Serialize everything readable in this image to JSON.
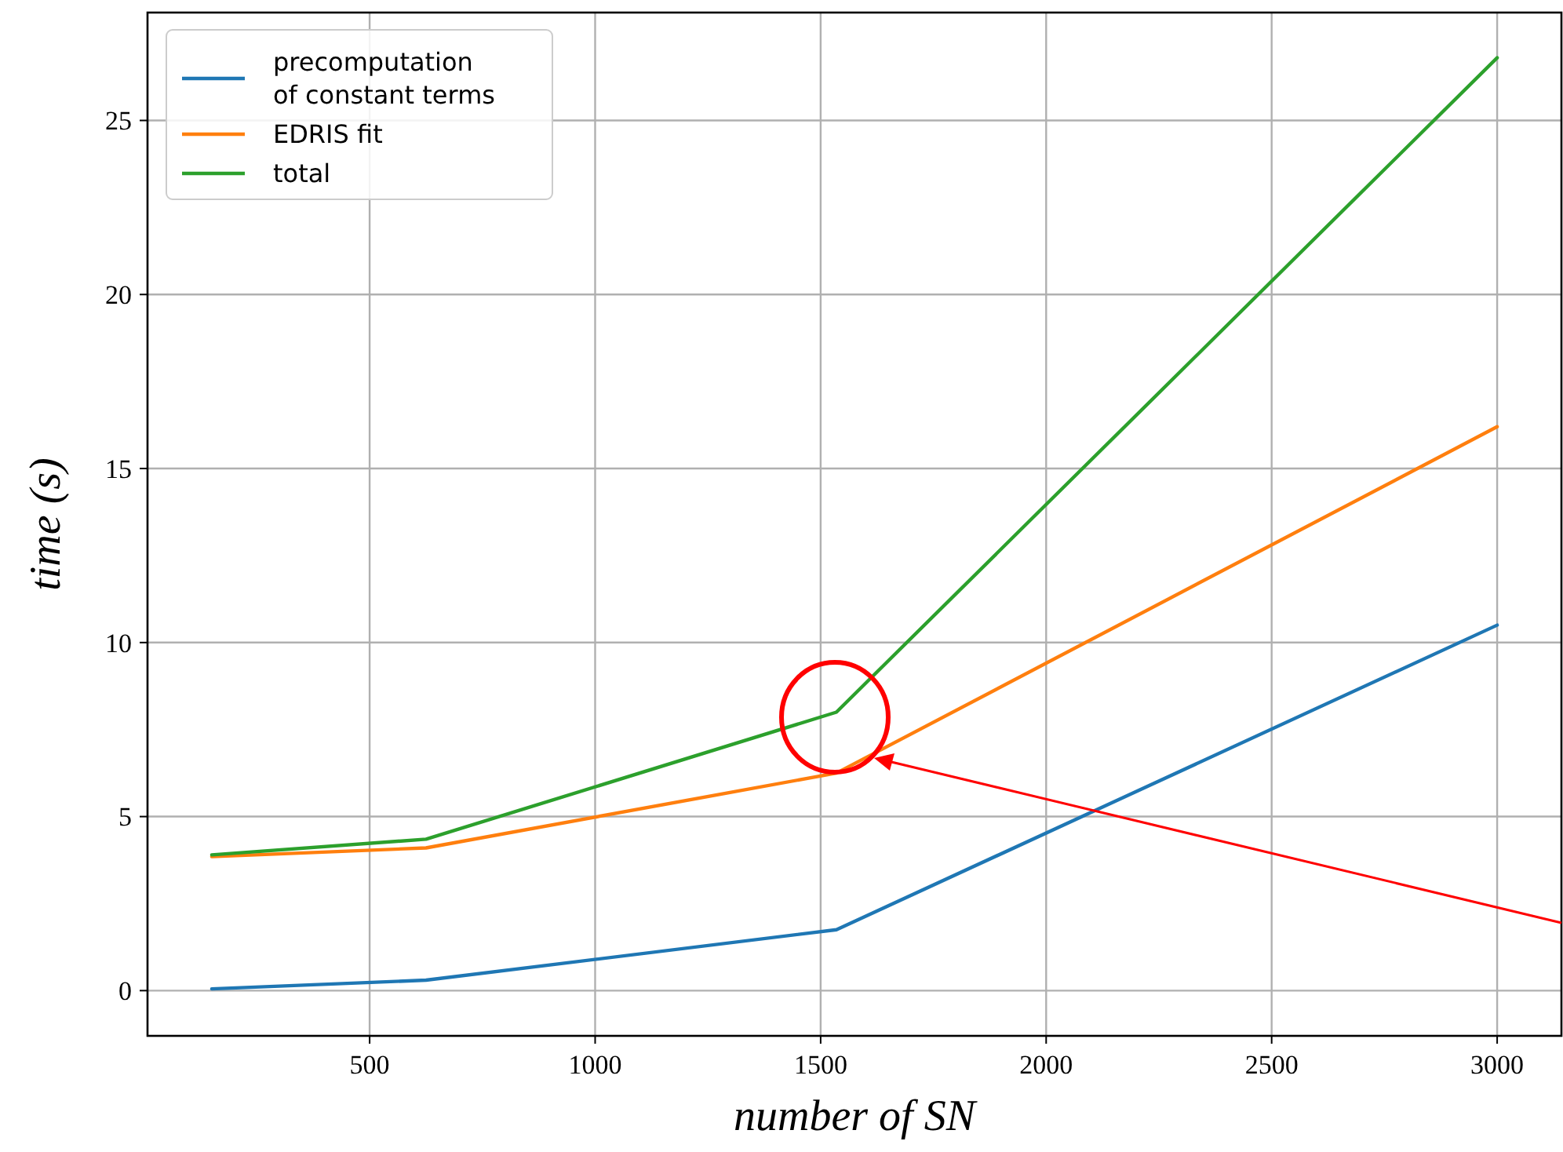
{
  "chart_data": {
    "type": "line",
    "xlabel": "number of SN",
    "ylabel": "time (s)",
    "x": [
      150,
      625,
      1535,
      3000
    ],
    "series": [
      {
        "name": "precomputation\nof constant terms",
        "color": "#1f77b4",
        "values": [
          0.05,
          0.3,
          1.75,
          10.5
        ]
      },
      {
        "name": "EDRIS fit",
        "color": "#ff7f0e",
        "values": [
          3.85,
          4.1,
          6.25,
          16.2
        ]
      },
      {
        "name": "total",
        "color": "#2ca02c",
        "values": [
          3.9,
          4.35,
          8.0,
          26.8
        ]
      }
    ],
    "xlim": [
      7.5,
      3142.5
    ],
    "ylim": [
      -1.3,
      28.1
    ],
    "xticks": [
      500,
      1000,
      1500,
      2000,
      2500,
      3000
    ],
    "yticks": [
      0,
      5,
      10,
      15,
      20,
      25
    ],
    "grid": true,
    "legend": "top left",
    "marker": "none",
    "line_style": "solid"
  }
}
